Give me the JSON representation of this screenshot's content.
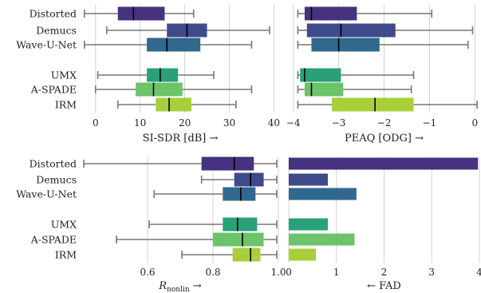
{
  "colors": {
    "Distorted": "#46327e",
    "Demucs": "#3e4a89",
    "Wave-U-Net": "#31688e",
    "UMX": "#29a07a",
    "A-SPADE": "#6cc36a",
    "IRM": "#a8cf3a",
    "whisker": "#777777",
    "grid": "#d3d3d3",
    "median": "#000000"
  },
  "chart_data": [
    {
      "type": "box",
      "xlabel": "SI-SDR [dB] →",
      "xlim": [
        -3,
        41
      ],
      "xticks": [
        0,
        10,
        20,
        30,
        40
      ],
      "categories": [
        "Distorted",
        "Demucs",
        "Wave-U-Net",
        "UMX",
        "A-SPADE",
        "IRM"
      ],
      "boxes": [
        {
          "name": "Distorted",
          "whislo": -2.5,
          "q1": 5,
          "med": 8.5,
          "q3": 15.5,
          "whishi": 22
        },
        {
          "name": "Demucs",
          "whislo": 2.5,
          "q1": 16,
          "med": 20.5,
          "q3": 25,
          "whishi": 39
        },
        {
          "name": "Wave-U-Net",
          "whislo": -2.5,
          "q1": 11.5,
          "med": 16,
          "q3": 23.5,
          "whishi": 35
        },
        {
          "name": "UMX",
          "whislo": 0.5,
          "q1": 11.5,
          "med": 14.5,
          "q3": 18.5,
          "whishi": 26.5
        },
        {
          "name": "A-SPADE",
          "whislo": 0,
          "q1": 9,
          "med": 13,
          "q3": 19.5,
          "whishi": 35
        },
        {
          "name": "IRM",
          "whislo": 5,
          "q1": 13.5,
          "med": 16.5,
          "q3": 21.5,
          "whishi": 31.5
        }
      ]
    },
    {
      "type": "box",
      "xlabel": "PEAQ [ODG] →",
      "xlim": [
        -4.1,
        0.1
      ],
      "xticks": [
        -4,
        -3,
        -2,
        -1,
        0
      ],
      "categories": [
        "Distorted",
        "Demucs",
        "Wave-U-Net",
        "UMX",
        "A-SPADE",
        "IRM"
      ],
      "boxes": [
        {
          "name": "Distorted",
          "whislo": -3.9,
          "q1": -3.75,
          "med": -3.6,
          "q3": -2.6,
          "whishi": -0.95
        },
        {
          "name": "Demucs",
          "whislo": -3.9,
          "q1": -3.7,
          "med": -2.95,
          "q3": -1.75,
          "whishi": -0.05
        },
        {
          "name": "Wave-U-Net",
          "whislo": -3.9,
          "q1": -3.6,
          "med": -3.0,
          "q3": -2.1,
          "whishi": -0.15
        },
        {
          "name": "UMX",
          "whislo": -3.9,
          "q1": -3.85,
          "med": -3.75,
          "q3": -2.95,
          "whishi": -1.35
        },
        {
          "name": "A-SPADE",
          "whislo": -3.9,
          "q1": -3.75,
          "med": -3.6,
          "q3": -2.9,
          "whishi": -1.4
        },
        {
          "name": "IRM",
          "whislo": -3.9,
          "q1": -3.15,
          "med": -2.2,
          "q3": -1.35,
          "whishi": 0.05
        }
      ]
    },
    {
      "type": "box",
      "xlabel": "R",
      "xlabel_sub": "nonlin",
      "xlabel_tail": " →",
      "xlim": [
        0.4,
        1.0
      ],
      "xticks": [
        0.6,
        0.8,
        1.0
      ],
      "categories": [
        "Distorted",
        "Demucs",
        "Wave-U-Net",
        "UMX",
        "A-SPADE",
        "IRM"
      ],
      "boxes": [
        {
          "name": "Distorted",
          "whislo": 0.405,
          "q1": 0.765,
          "med": 0.865,
          "q3": 0.925,
          "whishi": 0.995
        },
        {
          "name": "Demucs",
          "whislo": 0.765,
          "q1": 0.865,
          "med": 0.915,
          "q3": 0.955,
          "whishi": 0.995
        },
        {
          "name": "Wave-U-Net",
          "whislo": 0.62,
          "q1": 0.83,
          "med": 0.885,
          "q3": 0.93,
          "whishi": 0.995
        },
        {
          "name": "UMX",
          "whislo": 0.605,
          "q1": 0.83,
          "med": 0.875,
          "q3": 0.935,
          "whishi": 0.995
        },
        {
          "name": "A-SPADE",
          "whislo": 0.505,
          "q1": 0.8,
          "med": 0.89,
          "q3": 0.955,
          "whishi": 0.995
        },
        {
          "name": "IRM",
          "whislo": 0.705,
          "q1": 0.86,
          "med": 0.915,
          "q3": 0.945,
          "whishi": 0.995
        }
      ]
    },
    {
      "type": "bar",
      "xlabel": "← FAD",
      "xlim": [
        0,
        4
      ],
      "xticks": [
        0,
        1,
        2,
        3,
        4
      ],
      "categories": [
        "Distorted",
        "Demucs",
        "Wave-U-Net",
        "UMX",
        "A-SPADE",
        "IRM"
      ],
      "values": [
        3.97,
        0.82,
        1.42,
        0.82,
        1.38,
        0.57
      ]
    }
  ]
}
